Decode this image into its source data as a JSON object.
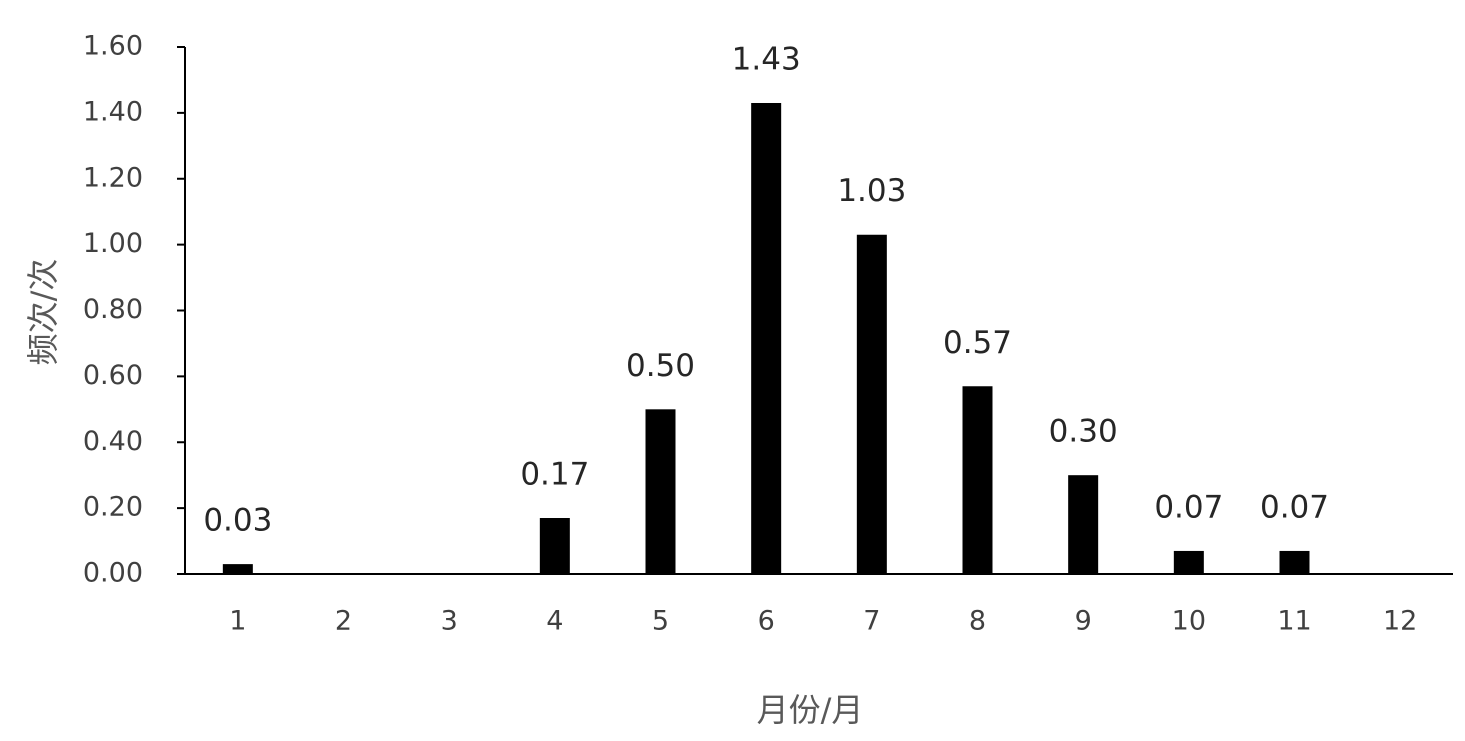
{
  "chart_data": {
    "type": "bar",
    "x_label": "月份/月",
    "y_label": "频次/次",
    "categories": [
      "1",
      "2",
      "3",
      "4",
      "5",
      "6",
      "7",
      "8",
      "9",
      "10",
      "11",
      "12"
    ],
    "values": [
      0.03,
      0,
      0,
      0.17,
      0.5,
      1.43,
      1.03,
      0.57,
      0.3,
      0.07,
      0.07,
      0
    ],
    "value_labels": [
      "0.03",
      null,
      null,
      "0.17",
      "0.50",
      "1.43",
      "1.03",
      "0.57",
      "0.30",
      "0.07",
      "0.07",
      null
    ],
    "color": "#000000",
    "ylim": [
      0,
      1.6
    ],
    "yticks": [
      {
        "value": 0,
        "label": "0.00"
      },
      {
        "value": 0.2,
        "label": "0.20"
      },
      {
        "value": 0.4,
        "label": "0.40"
      },
      {
        "value": 0.6,
        "label": "0.60"
      },
      {
        "value": 0.8,
        "label": "0.80"
      },
      {
        "value": 1.0,
        "label": "1.00"
      },
      {
        "value": 1.2,
        "label": "1.20"
      },
      {
        "value": 1.4,
        "label": "1.40"
      },
      {
        "value": 1.6,
        "label": "1.60"
      }
    ],
    "grid": false
  }
}
